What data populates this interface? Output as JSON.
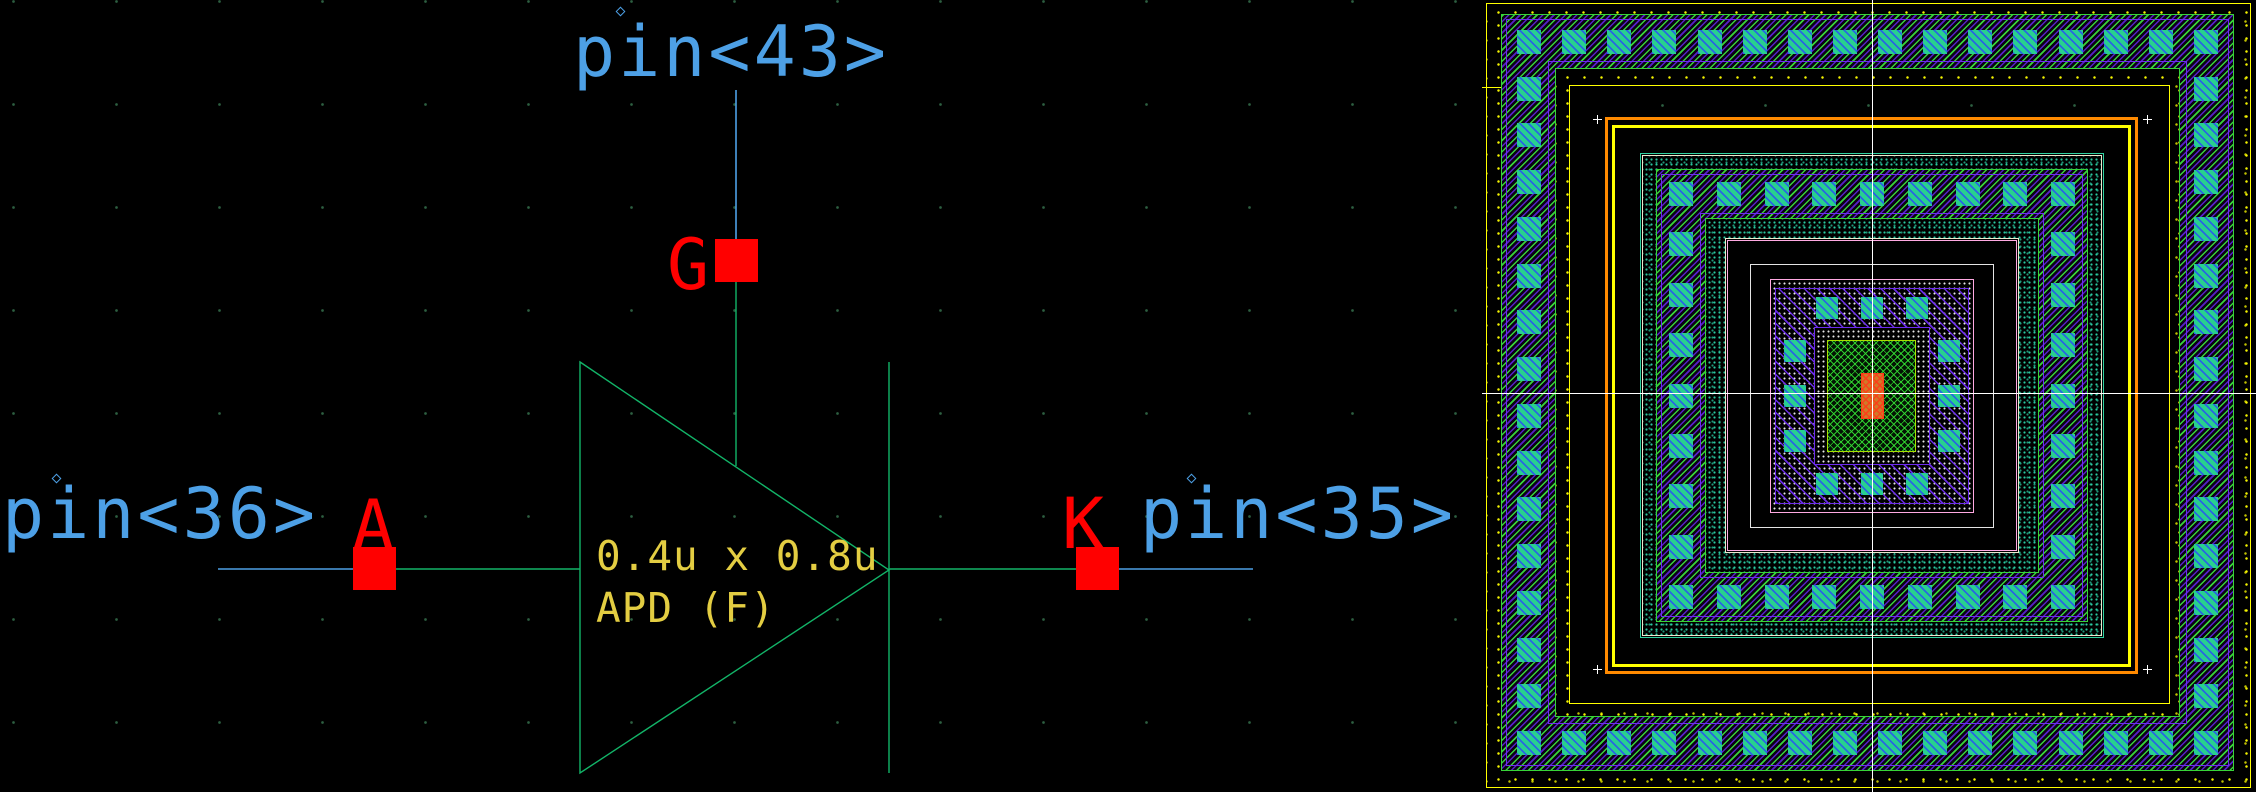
{
  "palette": {
    "wire": "#4DA0E6",
    "symbol": "#12B468",
    "pin": "#FF0000",
    "label": "#E3CD42",
    "boundary": "#FFFF00",
    "orange": "#FF8A00",
    "purple": "#6E2CEF",
    "hatchgreen": "#38D338",
    "teal": "#28D08E",
    "tealline": "#2FD1A0",
    "cream": "#EFE7CE",
    "pink": "#FFA9E2",
    "meshborder": "#A9E000",
    "centerfill": "#D07A28",
    "centerhatch": "#FF3A18",
    "cross": "#FFFFFF",
    "white2": "#E4E4E4",
    "griddot": "rgba(90,190,130,0.5)"
  },
  "schematic": {
    "net_labels": {
      "top": "pin<43>",
      "left": "pin<36>",
      "right": "pin<35>"
    },
    "terminal_labels": {
      "top": "G",
      "left": "A",
      "right": "K"
    },
    "device_labels": {
      "size": "0.4u x 0.8u",
      "name": "APD (F)"
    }
  },
  "layout": {
    "rings": {
      "outer_guard": {
        "contacts_per_row": 16,
        "contacts_per_column": 14,
        "contact_size": 24
      },
      "middle_guard": {
        "contacts_per_row": 9,
        "contacts_per_column": 7,
        "contact_size": 24
      },
      "inner_contact": {
        "contacts_per_side": 3,
        "contact_size": 22
      }
    },
    "corner_markers": 4,
    "crosshair": true
  }
}
